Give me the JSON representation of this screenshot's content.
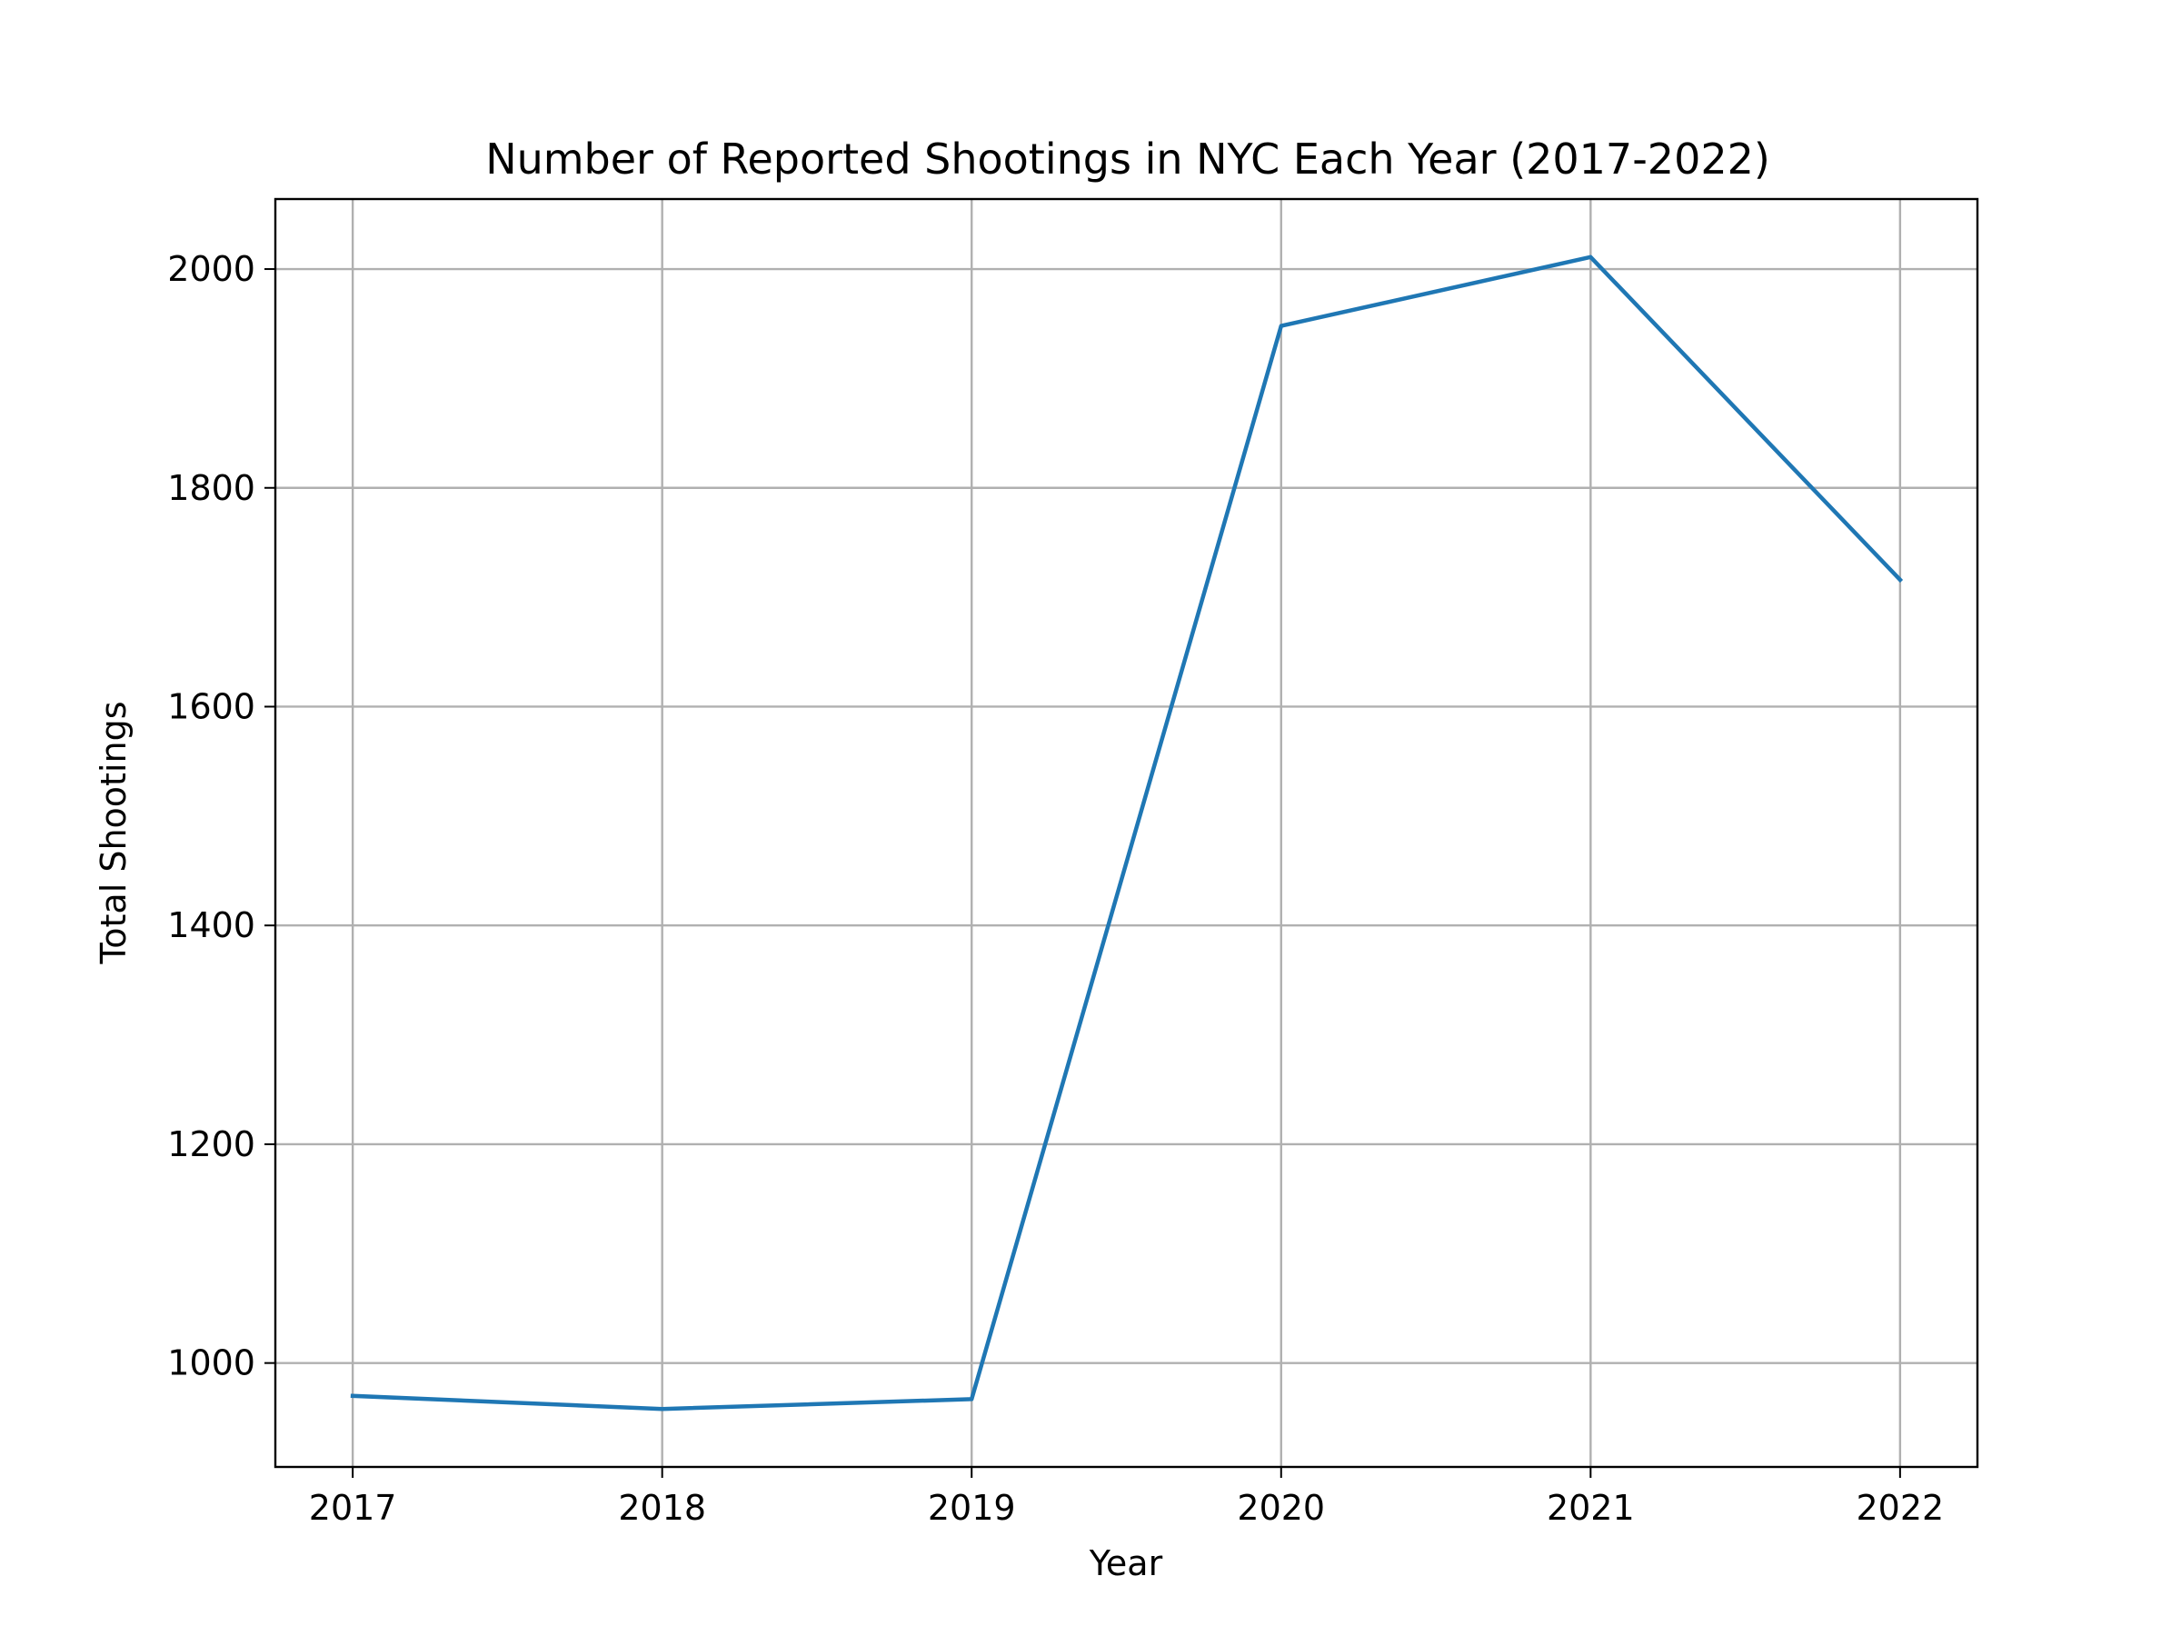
{
  "chart_data": {
    "type": "line",
    "title": "Number of Reported Shootings in NYC Each Year (2017-2022)",
    "xlabel": "Year",
    "ylabel": "Total Shootings",
    "x": [
      2017,
      2018,
      2019,
      2020,
      2021,
      2022
    ],
    "series": [
      {
        "values": [
          970,
          958,
          967,
          1948,
          2011,
          1716
        ]
      }
    ],
    "x_ticks": [
      "2017",
      "2018",
      "2019",
      "2020",
      "2021",
      "2022"
    ],
    "y_ticks": [
      "1000",
      "1200",
      "1400",
      "1600",
      "1800",
      "2000"
    ],
    "y_tick_values": [
      1000,
      1200,
      1400,
      1600,
      1800,
      2000
    ],
    "xlim": [
      2016.75,
      2022.25
    ],
    "ylim": [
      905,
      2064
    ],
    "grid": true,
    "line_color": "#1f77b4"
  }
}
